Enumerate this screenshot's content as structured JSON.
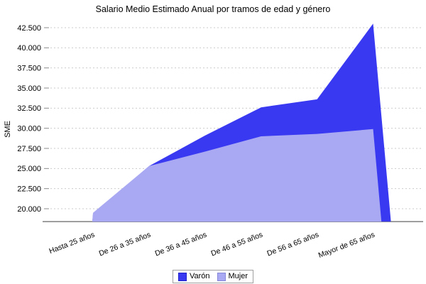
{
  "title": "Salario Medio Estimado Anual por tramos de edad y género",
  "chart_data": {
    "type": "area",
    "title": "Salario Medio Estimado Anual por tramos de edad y género",
    "xlabel": "",
    "ylabel": "SME",
    "categories": [
      "Hasta 25 años",
      "De 26 a 35 años",
      "De 36 a 45 años",
      "De 46 a 55 años",
      "De 56 a 65 años",
      "Mayor de 65 años"
    ],
    "series": [
      {
        "name": "Varón",
        "color": "#3939F2",
        "edge_color": "#2323CC",
        "values": [
          19300,
          25300,
          29100,
          32600,
          33600,
          43000
        ]
      },
      {
        "name": "Mujer",
        "color": "#A9A9F3",
        "edge_color": "#8888D8",
        "values": [
          19500,
          25300,
          27100,
          29000,
          29300,
          29900
        ]
      }
    ],
    "y_ticks": [
      {
        "label": "20.000",
        "value": 20000
      },
      {
        "label": "22.500",
        "value": 22500
      },
      {
        "label": "25.000",
        "value": 25000
      },
      {
        "label": "27.500",
        "value": 27500
      },
      {
        "label": "30.000",
        "value": 30000
      },
      {
        "label": "32.500",
        "value": 32500
      },
      {
        "label": "35.000",
        "value": 35000
      },
      {
        "label": "37.500",
        "value": 37500
      },
      {
        "label": "40.000",
        "value": 40000
      },
      {
        "label": "42.500",
        "value": 42500
      }
    ],
    "ylim": [
      18400,
      43400
    ],
    "grid": "horizontal-dashed",
    "legend_position": "bottom-center",
    "colors": {
      "grid_line": "#CBCBCB",
      "axis_line": "#7F7F7F",
      "text": "#000000",
      "background": "#FFFFFF"
    }
  },
  "legend": {
    "items": [
      {
        "label": "Varón"
      },
      {
        "label": "Mujer"
      }
    ]
  }
}
